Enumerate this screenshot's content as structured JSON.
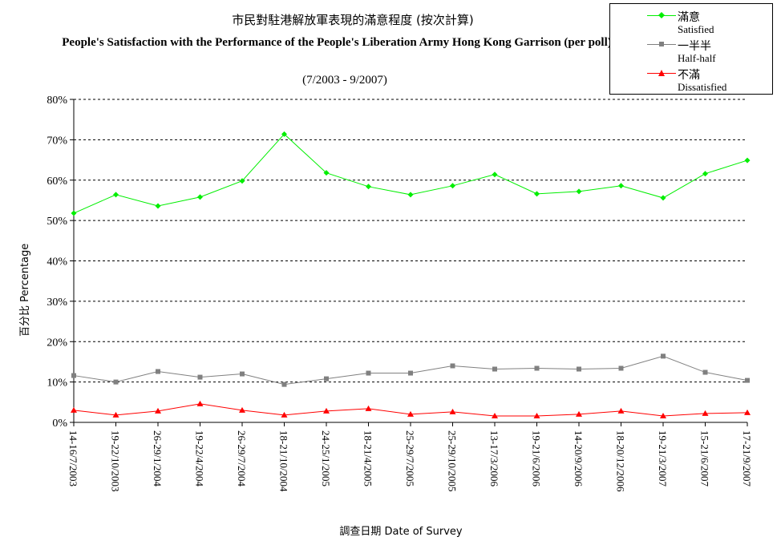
{
  "chart_data": {
    "type": "line",
    "title": "市民對駐港解放軍表現的滿意程度 (按次計算)",
    "title_en": "People's Satisfaction with the Performance of the People's Liberation Army Hong Kong Garrison (per poll)",
    "subtitle": "(7/2003 - 9/2007)",
    "xlabel": "調查日期 Date of Survey",
    "ylabel": "百分比 Percentage",
    "ylim": [
      0,
      80
    ],
    "yticks": [
      "0%",
      "10%",
      "20%",
      "30%",
      "40%",
      "50%",
      "60%",
      "70%",
      "80%"
    ],
    "grid": true,
    "legend_position": "top-right",
    "categories": [
      "14-16/7/2003",
      "19-22/10/2003",
      "26-29/1/2004",
      "19-22/4/2004",
      "26-29/7/2004",
      "18-21/10/2004",
      "24-25/1/2005",
      "18-21/4/2005",
      "25-29/7/2005",
      "25-29/10/2005",
      "13-17/3/2006",
      "19-21/6/2006",
      "14-20/9/2006",
      "18-20/12/2006",
      "19-21/3/2007",
      "15-21/6/2007",
      "17-21/9/2007"
    ],
    "series": [
      {
        "name": "滿意",
        "name_en": "Satisfied",
        "color": "#00ee00",
        "marker": "diamond",
        "values": [
          51.8,
          56.4,
          53.6,
          55.8,
          59.8,
          71.4,
          61.8,
          58.4,
          56.4,
          58.6,
          61.4,
          56.6,
          57.2,
          58.6,
          55.6,
          61.6,
          64.9
        ]
      },
      {
        "name": "一半半",
        "name_en": "Half-half",
        "color": "#808080",
        "marker": "square",
        "values": [
          11.6,
          10.0,
          12.6,
          11.2,
          12.0,
          9.4,
          10.8,
          12.2,
          12.2,
          14.0,
          13.2,
          13.4,
          13.2,
          13.4,
          16.4,
          12.4,
          10.4
        ]
      },
      {
        "name": "不滿",
        "name_en": "Dissatisfied",
        "color": "#ff0000",
        "marker": "triangle",
        "values": [
          3.0,
          1.8,
          2.8,
          4.6,
          3.0,
          1.8,
          2.8,
          3.4,
          2.0,
          2.6,
          1.6,
          1.6,
          2.0,
          2.8,
          1.6,
          2.2,
          2.4
        ]
      }
    ]
  }
}
